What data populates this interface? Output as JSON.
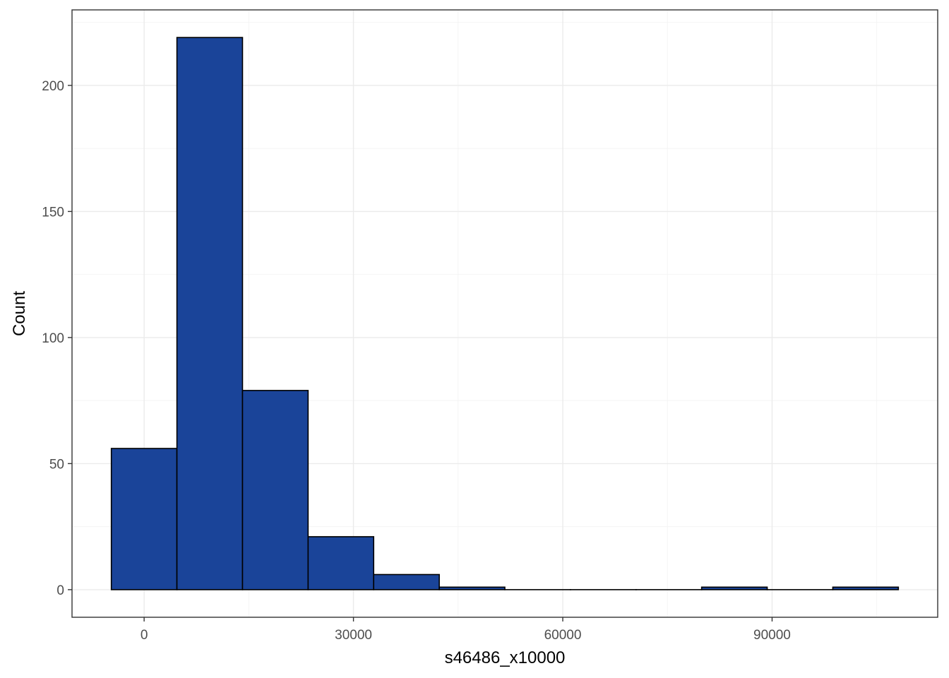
{
  "chart_data": {
    "type": "bar",
    "subtype": "histogram",
    "xlabel": "s46486_x10000",
    "ylabel": "Count",
    "bin_width": 9400,
    "bins": [
      {
        "x0": -4700,
        "x1": 4700,
        "count": 56
      },
      {
        "x0": 4700,
        "x1": 14100,
        "count": 219
      },
      {
        "x0": 14100,
        "x1": 23500,
        "count": 79
      },
      {
        "x0": 23500,
        "x1": 32900,
        "count": 21
      },
      {
        "x0": 32900,
        "x1": 42300,
        "count": 6
      },
      {
        "x0": 42300,
        "x1": 51700,
        "count": 1
      },
      {
        "x0": 51700,
        "x1": 61100,
        "count": 0
      },
      {
        "x0": 61100,
        "x1": 70500,
        "count": 0
      },
      {
        "x0": 70500,
        "x1": 79900,
        "count": 0
      },
      {
        "x0": 79900,
        "x1": 89300,
        "count": 1
      },
      {
        "x0": 89300,
        "x1": 98700,
        "count": 0
      },
      {
        "x0": 98700,
        "x1": 108100,
        "count": 1
      }
    ],
    "xlim": [
      -10335,
      113735
    ],
    "ylim": [
      -10.95,
      229.95
    ],
    "x_ticks": [
      0,
      30000,
      60000,
      90000
    ],
    "x_tick_labels": [
      "0",
      "30000",
      "60000",
      "90000"
    ],
    "y_ticks": [
      0,
      50,
      100,
      150,
      200
    ],
    "y_tick_labels": [
      "0",
      "50",
      "100",
      "150",
      "200"
    ],
    "grid": true,
    "legend": "none",
    "colors": {
      "bar_fill": "#1a4499",
      "bar_outline": "#000000",
      "panel_border": "#333333",
      "grid_major": "#ebebeb",
      "grid_minor": "#f3f3f3",
      "tick_text": "#4d4d4d",
      "axis_title": "#000000"
    }
  }
}
